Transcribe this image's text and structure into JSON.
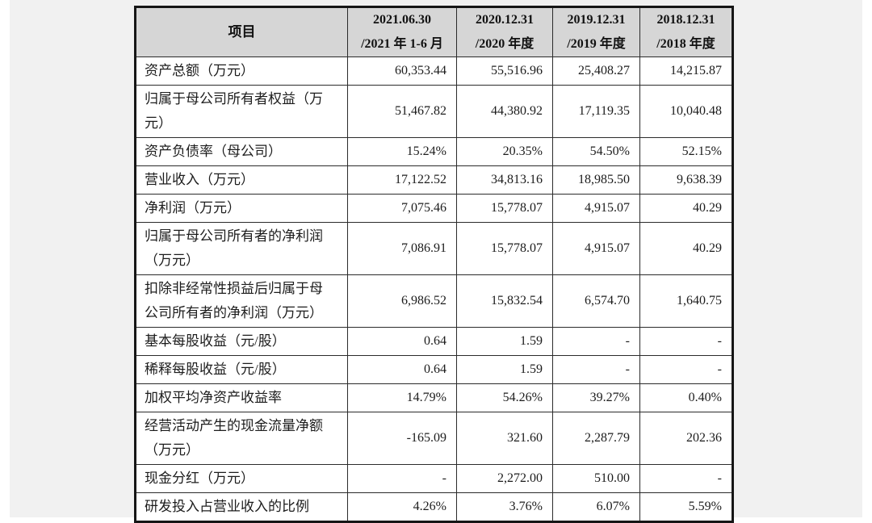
{
  "table": {
    "header": {
      "item_label": "项目",
      "columns": [
        {
          "date": "2021.06.30",
          "period": "/2021 年 1-6 月"
        },
        {
          "date": "2020.12.31",
          "period": "/2020 年度"
        },
        {
          "date": "2019.12.31",
          "period": "/2019 年度"
        },
        {
          "date": "2018.12.31",
          "period": "/2018 年度"
        }
      ]
    },
    "rows": [
      {
        "label": "资产总额（万元）",
        "values": [
          "60,353.44",
          "55,516.96",
          "25,408.27",
          "14,215.87"
        ]
      },
      {
        "label": "归属于母公司所有者权益（万元）",
        "values": [
          "51,467.82",
          "44,380.92",
          "17,119.35",
          "10,040.48"
        ]
      },
      {
        "label": "资产负债率（母公司）",
        "values": [
          "15.24%",
          "20.35%",
          "54.50%",
          "52.15%"
        ]
      },
      {
        "label": "营业收入（万元）",
        "values": [
          "17,122.52",
          "34,813.16",
          "18,985.50",
          "9,638.39"
        ]
      },
      {
        "label": "净利润（万元）",
        "values": [
          "7,075.46",
          "15,778.07",
          "4,915.07",
          "40.29"
        ]
      },
      {
        "label": "归属于母公司所有者的净利润（万元）",
        "values": [
          "7,086.91",
          "15,778.07",
          "4,915.07",
          "40.29"
        ]
      },
      {
        "label": "扣除非经常性损益后归属于母公司所有者的净利润（万元）",
        "values": [
          "6,986.52",
          "15,832.54",
          "6,574.70",
          "1,640.75"
        ]
      },
      {
        "label": "基本每股收益（元/股）",
        "values": [
          "0.64",
          "1.59",
          "-",
          "-"
        ]
      },
      {
        "label": "稀释每股收益（元/股）",
        "values": [
          "0.64",
          "1.59",
          "-",
          "-"
        ]
      },
      {
        "label": "加权平均净资产收益率",
        "values": [
          "14.79%",
          "54.26%",
          "39.27%",
          "0.40%"
        ]
      },
      {
        "label": "经营活动产生的现金流量净额（万元）",
        "values": [
          "-165.09",
          "321.60",
          "2,287.79",
          "202.36"
        ]
      },
      {
        "label": "现金分红（万元）",
        "values": [
          "-",
          "2,272.00",
          "510.00",
          "-"
        ]
      },
      {
        "label": "研发投入占营业收入的比例",
        "values": [
          "4.26%",
          "3.76%",
          "6.07%",
          "5.59%"
        ]
      }
    ],
    "colors": {
      "header_bg": "#d6d6d6",
      "border": "#161616",
      "page_backdrop": "#f1f1f1",
      "cell_bg": "#ffffff",
      "text": "#1c1c1c"
    }
  }
}
